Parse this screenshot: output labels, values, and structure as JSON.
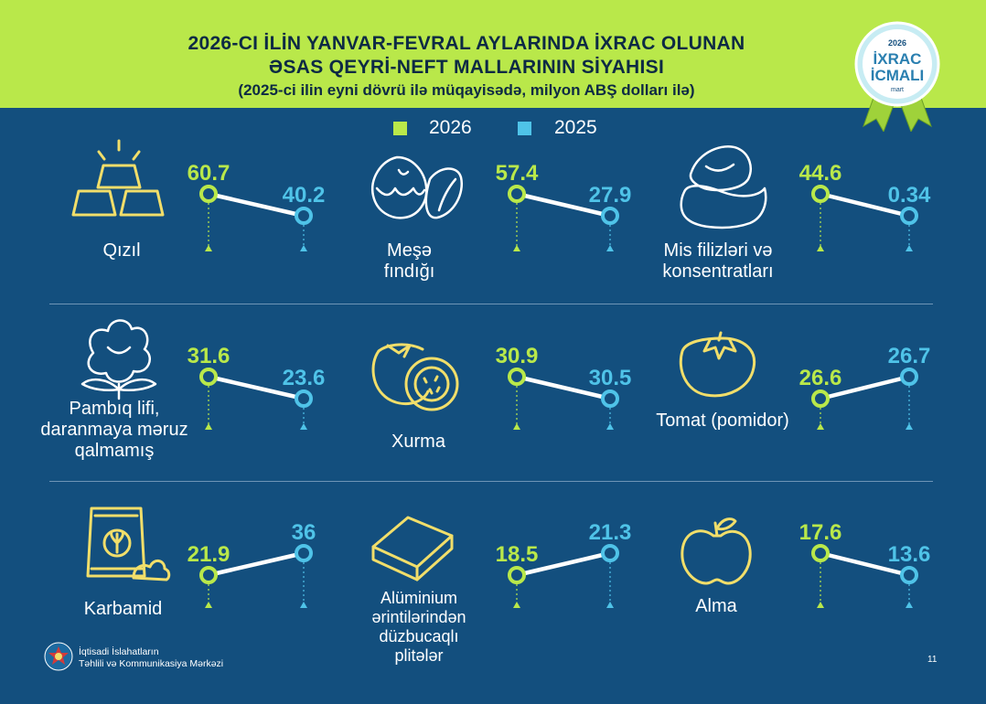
{
  "header": {
    "title_line1": "2026-CI İLİN YANVAR-FEVRAL AYLARINDA İXRAC OLUNAN",
    "title_line2": "ƏSAS QEYRİ-NEFT MALLARININ SİYAHISI",
    "subtitle": "(2025-ci ilin eyni dövrü ilə müqayisədə, milyon ABŞ dolları ilə)"
  },
  "badge": {
    "year": "2026",
    "line1": "İXRAC",
    "line2": "İCMALI",
    "month": "mart"
  },
  "legend": {
    "label_2026": "2026",
    "label_2025": "2025"
  },
  "colors": {
    "header_bg": "#b9e84a",
    "page_bg": "#134f7e",
    "series_2026": "#b9e84a",
    "series_2025": "#4fc3e8",
    "connector": "#ffffff"
  },
  "chart_data": {
    "type": "line",
    "title": "2026-CI İLİN YANVAR-FEVRAL AYLARINDA İXRAC OLUNAN ƏSAS QEYRİ-NEFT MALLARININ SİYAHISI",
    "subtitle": "(2025-ci ilin eyni dövrü ilə müqayisədə, milyon ABŞ dolları ilə)",
    "series_names": [
      "2026",
      "2025"
    ],
    "products": [
      {
        "name": "Qızıl",
        "icon": "gold-bars-icon",
        "v2026": "60.7",
        "v2025": "40.2"
      },
      {
        "name": "Meşə fındığı",
        "icon": "hazelnut-icon",
        "v2026": "57.4",
        "v2025": "27.9"
      },
      {
        "name": "Mis filizləri və konsentratları",
        "icon": "copper-ore-icon",
        "v2026": "44.6",
        "v2025": "0.34"
      },
      {
        "name": "Pambıq lifi, daranmaya məruz qalmamış",
        "icon": "cotton-icon",
        "v2026": "31.6",
        "v2025": "23.6"
      },
      {
        "name": "Xurma",
        "icon": "persimmon-icon",
        "v2026": "30.9",
        "v2025": "30.5"
      },
      {
        "name": "Tomat (pomidor)",
        "icon": "tomato-icon",
        "v2026": "26.6",
        "v2025": "26.7"
      },
      {
        "name": "Karbamid",
        "icon": "fertilizer-bag-icon",
        "v2026": "21.9",
        "v2025": "36"
      },
      {
        "name": "Alüminium ərintilərindən düzbucaqlı plitələr",
        "icon": "aluminium-slab-icon",
        "v2026": "18.5",
        "v2025": "21.3"
      },
      {
        "name": "Alma",
        "icon": "apple-icon",
        "v2026": "17.6",
        "v2025": "13.6"
      }
    ]
  },
  "footer": {
    "org_line1": "İqtisadi İslahatların",
    "org_line2": "Təhlili və Kommunikasiya Mərkəzi",
    "page": "11"
  }
}
